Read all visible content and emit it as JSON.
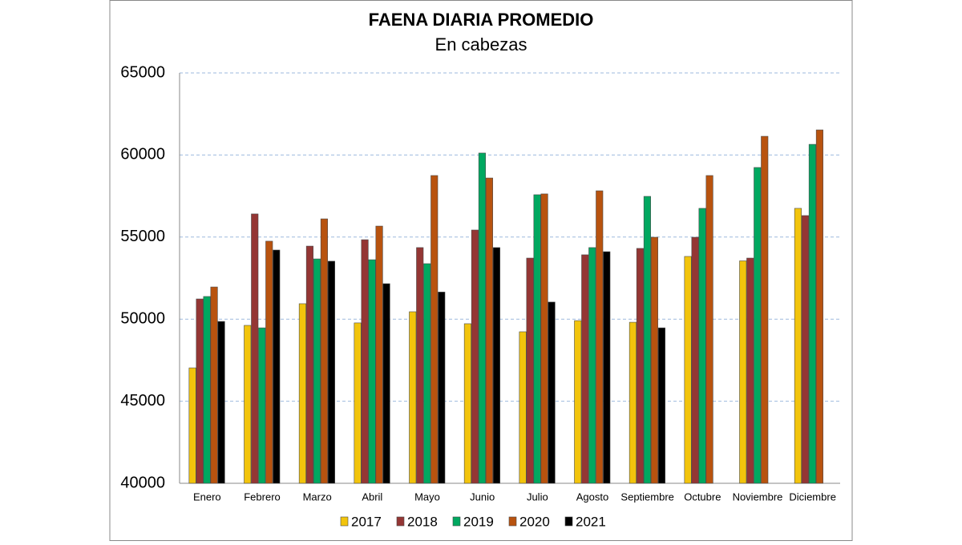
{
  "chart_data": {
    "type": "bar",
    "title": "FAENA DIARIA PROMEDIO",
    "subtitle": "En cabezas",
    "categories": [
      "Enero",
      "Febrero",
      "Marzo",
      "Abril",
      "Mayo",
      "Junio",
      "Julio",
      "Agosto",
      "Septiembre",
      "Octubre",
      "Noviembre",
      "Diciembre"
    ],
    "series": [
      {
        "name": "2017",
        "color": "#f2c40c",
        "values": [
          47030,
          49620,
          50940,
          49770,
          50450,
          49720,
          49230,
          49910,
          49810,
          53820,
          53550,
          56750
        ]
      },
      {
        "name": "2018",
        "color": "#943634",
        "values": [
          51230,
          56410,
          54450,
          54840,
          54360,
          55430,
          53720,
          53920,
          54310,
          54990,
          53720,
          56310
        ]
      },
      {
        "name": "2019",
        "color": "#00a860",
        "values": [
          51380,
          49470,
          53670,
          53620,
          53380,
          60120,
          57580,
          54360,
          57480,
          56750,
          59240,
          60650
        ]
      },
      {
        "name": "2020",
        "color": "#b8530f",
        "values": [
          51960,
          54750,
          56110,
          55670,
          58750,
          58600,
          57630,
          57820,
          54990,
          58750,
          61140,
          61530
        ]
      },
      {
        "name": "2021",
        "color": "#000000",
        "values": [
          49860,
          54210,
          53530,
          52160,
          51650,
          54360,
          51040,
          54110,
          49470,
          null,
          null,
          null
        ]
      }
    ],
    "ylim": [
      40000,
      65000
    ],
    "yticks": [
      40000,
      45000,
      50000,
      55000,
      60000,
      65000
    ],
    "grid": true
  }
}
